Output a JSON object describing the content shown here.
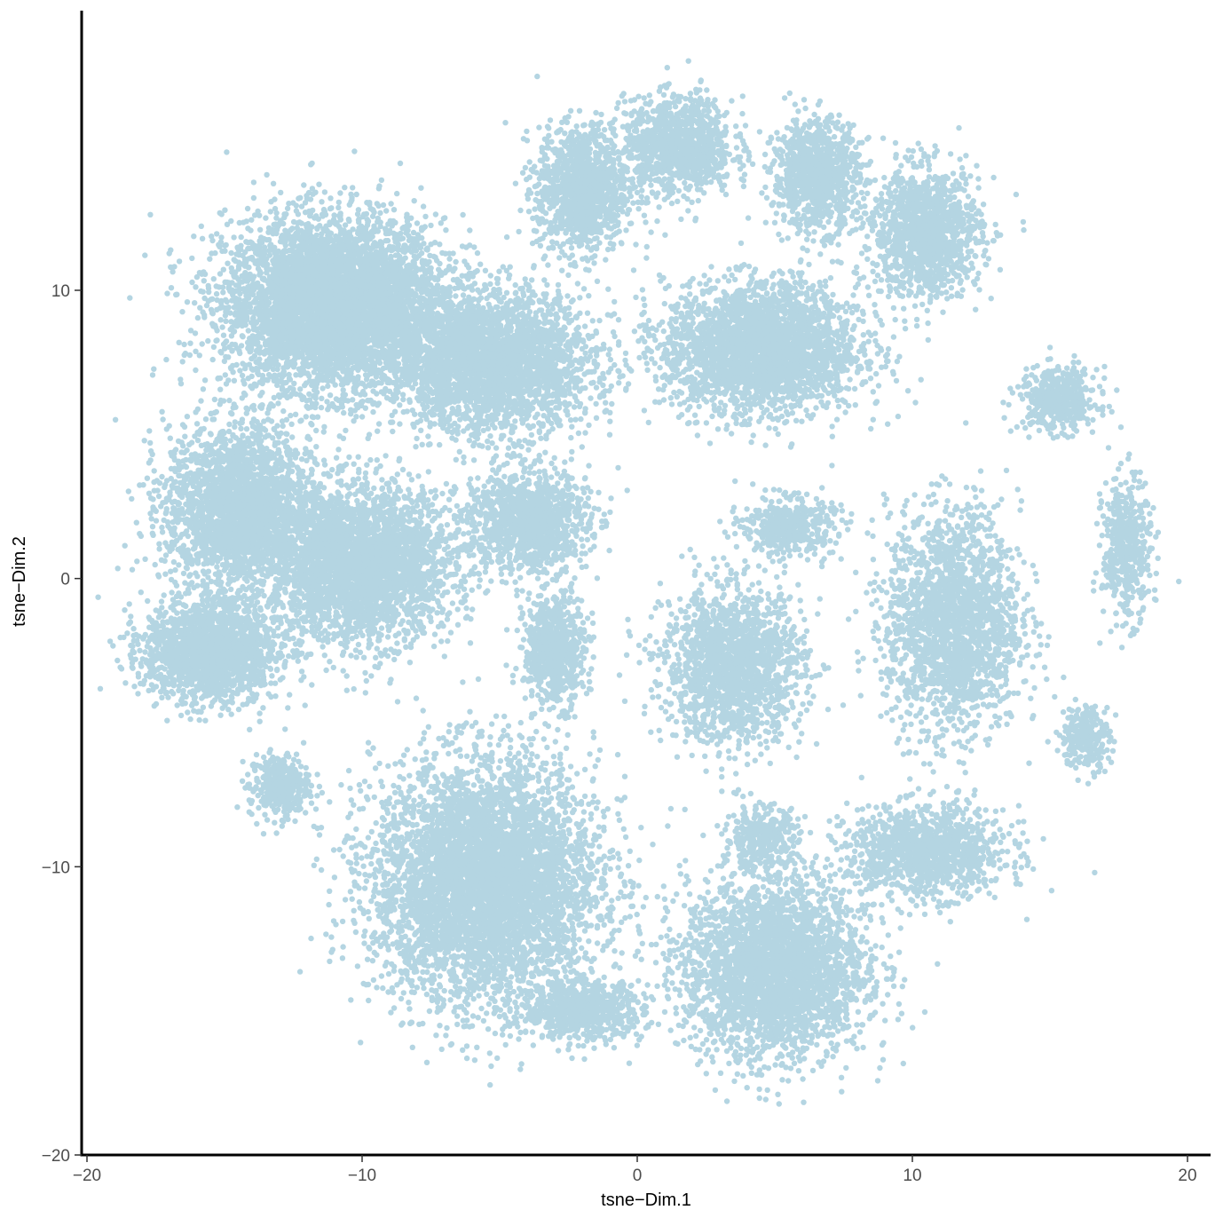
{
  "chart_data": {
    "type": "scatter",
    "title": "",
    "xlabel": "tsne−Dim.1",
    "ylabel": "tsne−Dim.2",
    "xlim": [
      -20,
      20
    ],
    "ylim": [
      -20,
      20
    ],
    "x_ticks": [
      -20,
      -10,
      0,
      10,
      20
    ],
    "y_ticks": [
      -20,
      -10,
      0,
      10
    ],
    "x_tick_labels": [
      "−20",
      "−10",
      "0",
      "10",
      "20"
    ],
    "y_tick_labels": [
      "−20",
      "−10",
      "0",
      "10"
    ],
    "point_color": "#b4d5e2",
    "grid": false,
    "legend": "none",
    "clusters": [
      {
        "center": [
          -11.0,
          9.5
        ],
        "spread": [
          3.6,
          2.7
        ],
        "points": 5200
      },
      {
        "center": [
          -14.5,
          2.5
        ],
        "spread": [
          2.4,
          2.6
        ],
        "points": 2400
      },
      {
        "center": [
          -10.0,
          0.5
        ],
        "spread": [
          3.0,
          2.4
        ],
        "points": 3000
      },
      {
        "center": [
          -15.5,
          -2.5
        ],
        "spread": [
          2.2,
          1.6
        ],
        "points": 1800
      },
      {
        "center": [
          -13.0,
          -7.2
        ],
        "spread": [
          1.0,
          1.0
        ],
        "points": 350
      },
      {
        "center": [
          -5.2,
          7.5
        ],
        "spread": [
          3.2,
          2.2
        ],
        "points": 2800
      },
      {
        "center": [
          -4.0,
          2.0
        ],
        "spread": [
          2.0,
          1.6
        ],
        "points": 1200
      },
      {
        "center": [
          -2.0,
          13.5
        ],
        "spread": [
          1.5,
          2.0
        ],
        "points": 1200
      },
      {
        "center": [
          1.5,
          15.0
        ],
        "spread": [
          1.8,
          1.5
        ],
        "points": 1100
      },
      {
        "center": [
          6.5,
          14.0
        ],
        "spread": [
          1.4,
          1.7
        ],
        "points": 1000
      },
      {
        "center": [
          10.5,
          12.0
        ],
        "spread": [
          1.8,
          2.0
        ],
        "points": 1300
      },
      {
        "center": [
          4.5,
          8.0
        ],
        "spread": [
          3.2,
          2.0
        ],
        "points": 2800
      },
      {
        "center": [
          -3.0,
          -2.5
        ],
        "spread": [
          1.0,
          1.7
        ],
        "points": 700
      },
      {
        "center": [
          3.5,
          -3.0
        ],
        "spread": [
          2.3,
          2.4
        ],
        "points": 1700
      },
      {
        "center": [
          5.5,
          1.8
        ],
        "spread": [
          1.5,
          0.9
        ],
        "points": 450
      },
      {
        "center": [
          11.5,
          -1.5
        ],
        "spread": [
          2.2,
          3.5
        ],
        "points": 2000
      },
      {
        "center": [
          15.3,
          6.2
        ],
        "spread": [
          1.3,
          1.0
        ],
        "points": 450
      },
      {
        "center": [
          17.8,
          1.0
        ],
        "spread": [
          0.8,
          2.2
        ],
        "points": 450
      },
      {
        "center": [
          16.3,
          -5.5
        ],
        "spread": [
          0.8,
          1.0
        ],
        "points": 250
      },
      {
        "center": [
          4.5,
          -9.0
        ],
        "spread": [
          1.2,
          1.0
        ],
        "points": 350
      },
      {
        "center": [
          -5.5,
          -10.5
        ],
        "spread": [
          3.7,
          3.8
        ],
        "points": 5000
      },
      {
        "center": [
          -2.0,
          -15.0
        ],
        "spread": [
          2.0,
          0.9
        ],
        "points": 700
      },
      {
        "center": [
          5.0,
          -13.5
        ],
        "spread": [
          3.0,
          2.8
        ],
        "points": 3000
      },
      {
        "center": [
          10.5,
          -9.5
        ],
        "spread": [
          2.6,
          1.4
        ],
        "points": 1200
      }
    ]
  }
}
